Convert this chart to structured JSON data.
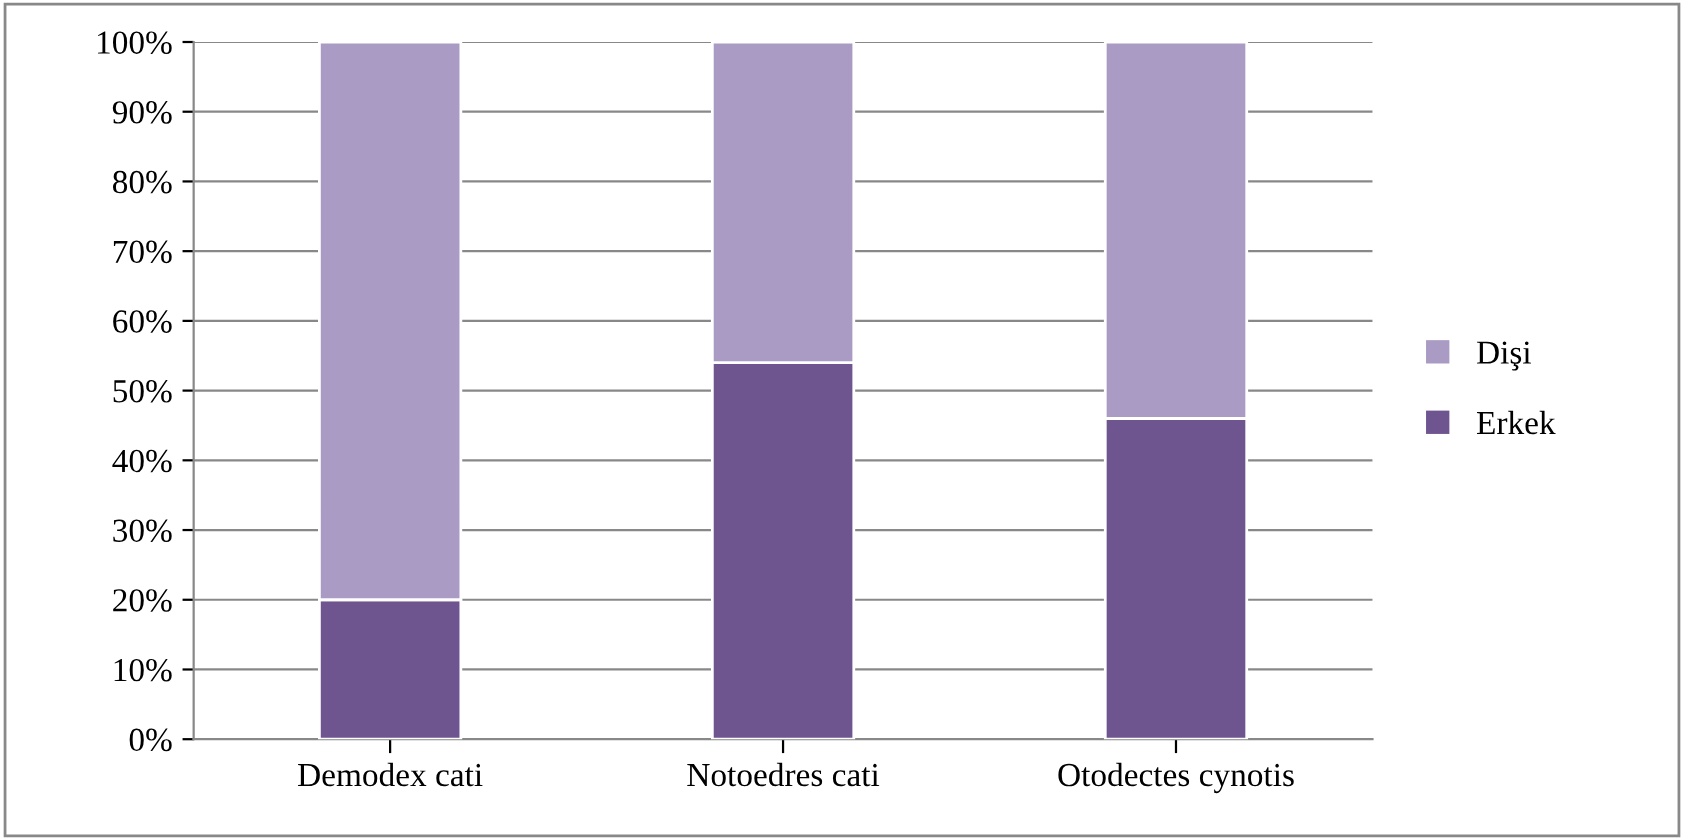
{
  "chart_data": {
    "type": "bar",
    "stacked": true,
    "categories": [
      "Demodex cati",
      "Notoedres cati",
      "Otodectes cynotis"
    ],
    "series": [
      {
        "name": "Erkek",
        "color": "#6f5590",
        "values": [
          20,
          54,
          46
        ]
      },
      {
        "name": "Dişi",
        "color": "#a99bc3",
        "values": [
          80,
          46,
          54
        ]
      }
    ],
    "ylim": [
      0,
      100
    ],
    "yticks": [
      {
        "value": 0,
        "label": "0%"
      },
      {
        "value": 10,
        "label": "10%"
      },
      {
        "value": 20,
        "label": "20%"
      },
      {
        "value": 30,
        "label": "30%"
      },
      {
        "value": 40,
        "label": "40%"
      },
      {
        "value": 50,
        "label": "50%"
      },
      {
        "value": 60,
        "label": "60%"
      },
      {
        "value": 70,
        "label": "70%"
      },
      {
        "value": 80,
        "label": "80%"
      },
      {
        "value": 90,
        "label": "90%"
      },
      {
        "value": 100,
        "label": "100%"
      }
    ],
    "grid": "y",
    "legend": "right"
  }
}
